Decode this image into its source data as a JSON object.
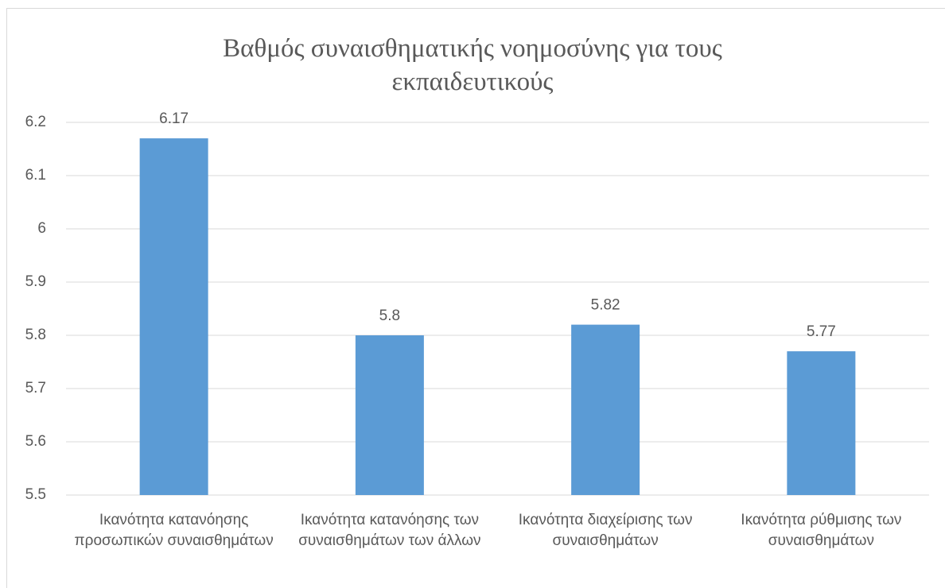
{
  "chart_data": {
    "type": "bar",
    "title": "Βαθμός συναισθηματικής νοημοσύνης για τους εκπαιδευτικούς",
    "categories": [
      "Ικανότητα κατανόησης προσωπικών συναισθημάτων",
      "Ικανότητα κατανόησης των συναισθημάτων των άλλων",
      "Ικανότητα διαχείρισης των συναισθημάτων",
      "Ικανότητα ρύθμισης των συναισθημάτων"
    ],
    "values": [
      6.17,
      5.8,
      5.82,
      5.77
    ],
    "color": "#5b9bd5",
    "ylim": [
      5.5,
      6.2
    ],
    "yticks": [
      5.5,
      5.6,
      5.7,
      5.8,
      5.9,
      6,
      6.1,
      6.2
    ],
    "grid": true
  }
}
